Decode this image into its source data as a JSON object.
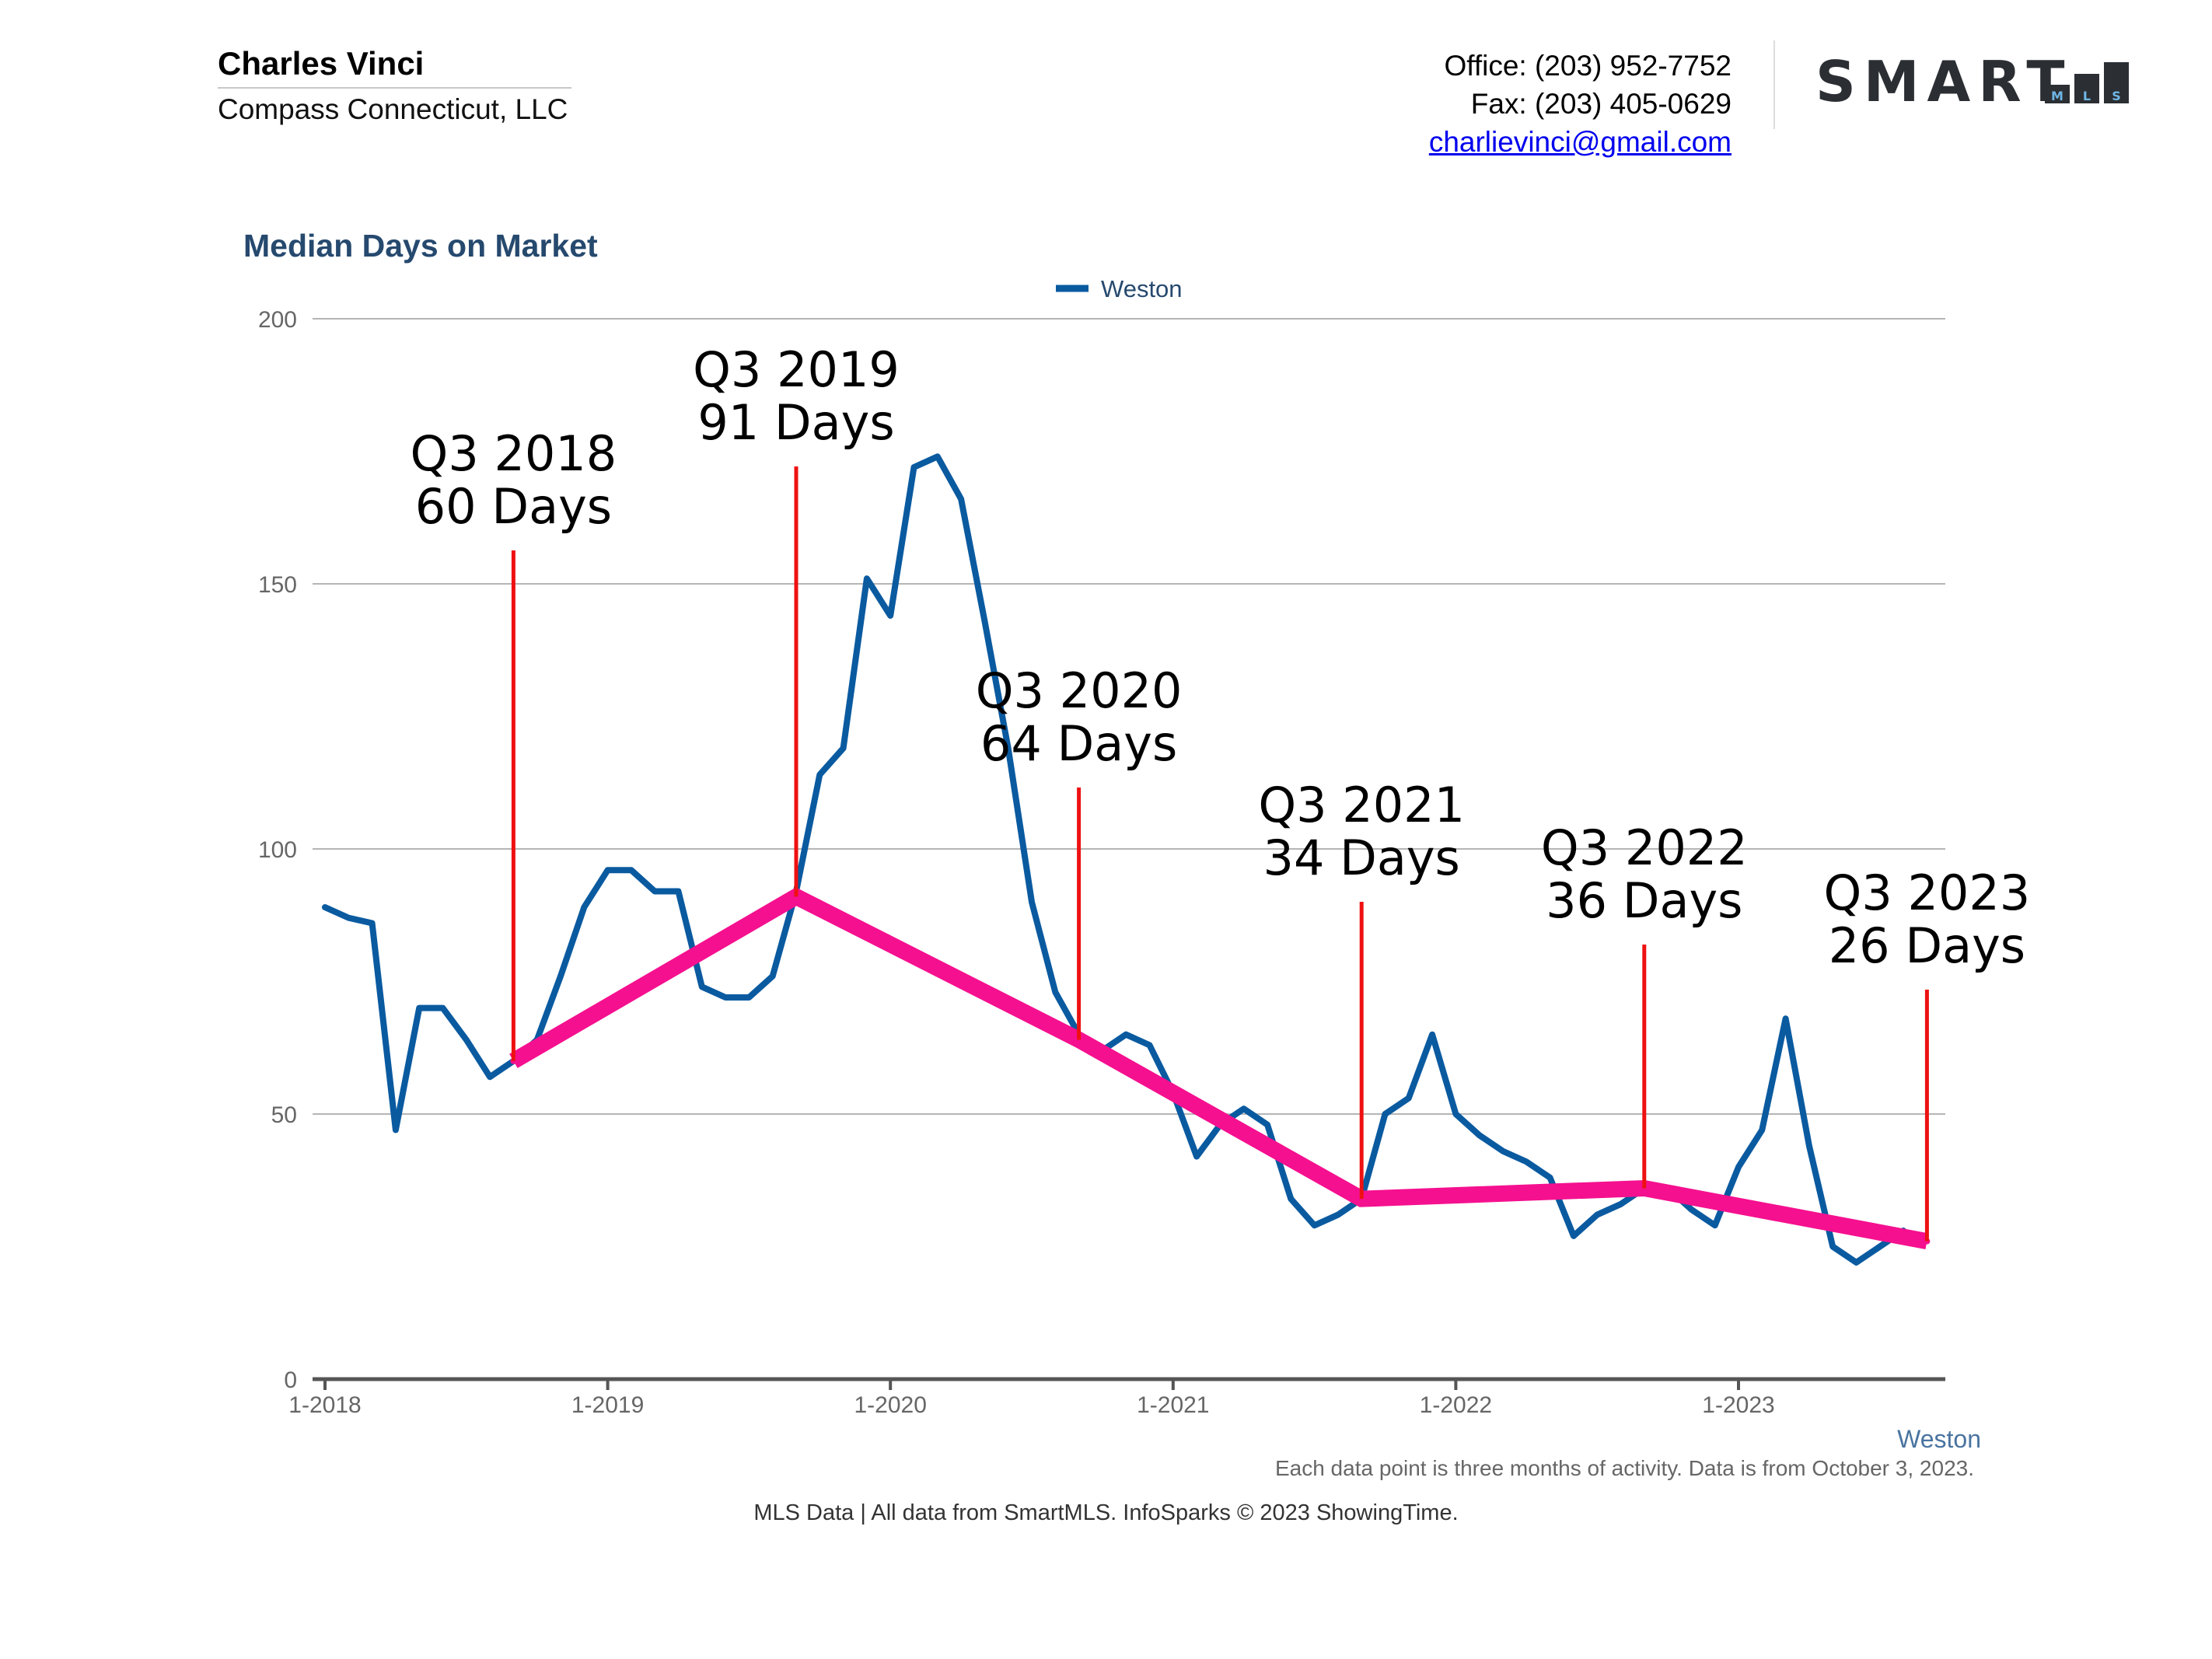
{
  "header": {
    "agent_name": "Charles Vinci",
    "company": "Compass Connecticut, LLC",
    "office": "Office: (203) 952-7752",
    "fax": "Fax: (203) 405-0629",
    "email": "charlievinci@gmail.com",
    "logo_text": "SMART",
    "logo_letters": [
      "M",
      "L",
      "S"
    ]
  },
  "chart_data": {
    "type": "line",
    "title": "Median Days on Market",
    "legend": [
      {
        "name": "Weston",
        "color": "#0a5aa0"
      }
    ],
    "x_axis_label": "Weston",
    "x_tick_labels": [
      "1-2018",
      "1-2019",
      "1-2020",
      "1-2021",
      "1-2022",
      "1-2023"
    ],
    "y_ticks": [
      0,
      50,
      100,
      150,
      200
    ],
    "ylim": [
      0,
      200
    ],
    "grid": true,
    "series": [
      {
        "name": "Weston",
        "color": "#0a5aa0",
        "start": "1-2018",
        "interval": "month",
        "values": [
          89,
          87,
          86,
          47,
          70,
          70,
          64,
          57,
          60,
          64,
          76,
          89,
          96,
          96,
          92,
          92,
          74,
          72,
          72,
          76,
          92,
          114,
          119,
          151,
          144,
          172,
          174,
          166,
          143,
          119,
          90,
          73,
          65,
          62,
          65,
          63,
          54,
          42,
          48,
          51,
          48,
          34,
          29,
          31,
          34,
          50,
          53,
          65,
          50,
          46,
          43,
          41,
          38,
          27,
          31,
          33,
          36,
          36,
          32,
          29,
          40,
          47,
          68,
          44,
          25,
          22,
          25,
          28
        ]
      },
      {
        "name": "Q3 Trend",
        "color": "#f5108f",
        "points": [
          {
            "label": "Q3 2018",
            "month_index": 8,
            "value": 60
          },
          {
            "label": "Q3 2019",
            "month_index": 20,
            "value": 91
          },
          {
            "label": "Q3 2020",
            "month_index": 32,
            "value": 64
          },
          {
            "label": "Q3 2021",
            "month_index": 44,
            "value": 34
          },
          {
            "label": "Q3 2022",
            "month_index": 56,
            "value": 36
          },
          {
            "label": "Q3 2023",
            "month_index": 68,
            "value": 26
          }
        ]
      }
    ],
    "annotations": [
      {
        "line1": "Q3 2018",
        "line2": "60 Days"
      },
      {
        "line1": "Q3 2019",
        "line2": "91 Days"
      },
      {
        "line1": "Q3 2020",
        "line2": "64 Days"
      },
      {
        "line1": "Q3 2021",
        "line2": "34 Days"
      },
      {
        "line1": "Q3 2022",
        "line2": "36 Days"
      },
      {
        "line1": "Q3 2023",
        "line2": "26 Days"
      }
    ]
  },
  "footer": {
    "note": "Each data point is three months of activity. Data is from October 3, 2023.",
    "source": "MLS Data | All data from SmartMLS. InfoSparks © 2023 ShowingTime."
  }
}
